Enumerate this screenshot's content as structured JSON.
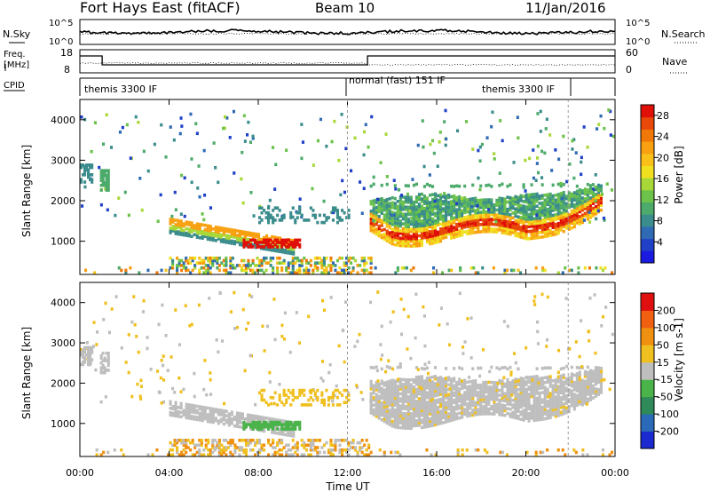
{
  "header": {
    "title": "Fort Hays East (fitACF)",
    "beam": "Beam 10",
    "date": "11/Jan/2016"
  },
  "top_panels": {
    "nsky_label": "N.Sky",
    "nsearch_label": "N.Search",
    "nsky_ticks": [
      "10^5",
      "10^0"
    ],
    "nsearch_ticks": [
      "10^5",
      "10^0"
    ],
    "freq_label_1": "Freq.",
    "freq_label_2": "[MHz]",
    "freq_ticks": [
      "18",
      "8"
    ],
    "nave_label": "Nave",
    "nave_ticks": [
      "60",
      "0"
    ],
    "cpid_label": "CPID",
    "cpid_segments": [
      {
        "label": "themis 3300 IF",
        "start": 0.0,
        "end": 12.0
      },
      {
        "label": "normal (fast) 151 IF",
        "start": 12.0,
        "end": 22.0
      },
      {
        "label": "themis 3300 IF",
        "start": 22.0,
        "end": 24.0
      }
    ]
  },
  "chart_data": [
    {
      "type": "heatmap",
      "name": "power",
      "ylabel": "Slant Range [km]",
      "ylim": [
        180,
        4500
      ],
      "yticks": [
        1000,
        2000,
        3000,
        4000
      ],
      "xlim": [
        0,
        24
      ],
      "colorbar": {
        "label": "Power [dB]",
        "range": [
          0,
          30
        ],
        "ticks": [
          4,
          8,
          12,
          16,
          20,
          24,
          28
        ],
        "colors": [
          "#1a1ae0",
          "#2040c8",
          "#2f6ab4",
          "#3b8c8c",
          "#4caa6a",
          "#6cc24a",
          "#a8d838",
          "#f0e020",
          "#f8c018",
          "#f8a010",
          "#f07808",
          "#e84808",
          "#e01008"
        ]
      },
      "features": [
        {
          "kind": "band",
          "x0": 13.0,
          "x1": 23.4,
          "upper": 2150,
          "lower": 1400,
          "ridge": 1300,
          "color": "strong"
        },
        {
          "kind": "echo",
          "x0": 4.0,
          "x1": 9.5,
          "center": 1200,
          "width": 350,
          "color": "mixed"
        },
        {
          "kind": "echo",
          "x0": 7.3,
          "x1": 9.8,
          "center": 1000,
          "width": 150,
          "color": "red"
        },
        {
          "kind": "near",
          "x0": 0.0,
          "x1": 24.0,
          "center": 350,
          "width": 200,
          "color": "mixed"
        }
      ]
    },
    {
      "type": "heatmap",
      "name": "velocity",
      "ylabel": "Slant Range [km]",
      "xlabel": "Time UT",
      "ylim": [
        180,
        4500
      ],
      "yticks": [
        1000,
        2000,
        3000,
        4000
      ],
      "xlim": [
        0,
        24
      ],
      "xticks": [
        "00:00",
        "04:00",
        "08:00",
        "12:00",
        "16:00",
        "20:00",
        "00:00"
      ],
      "colorbar": {
        "label": "Velocity [m s-1]",
        "ticks": [
          200,
          100,
          50,
          15,
          -15,
          -50,
          -100,
          -200
        ],
        "colors": [
          "#1a2ad0",
          "#2a6ab8",
          "#2f8a5a",
          "#4ab44a",
          "#bebebe",
          "#f0c020",
          "#f09010",
          "#f06010",
          "#e01010"
        ]
      }
    }
  ]
}
